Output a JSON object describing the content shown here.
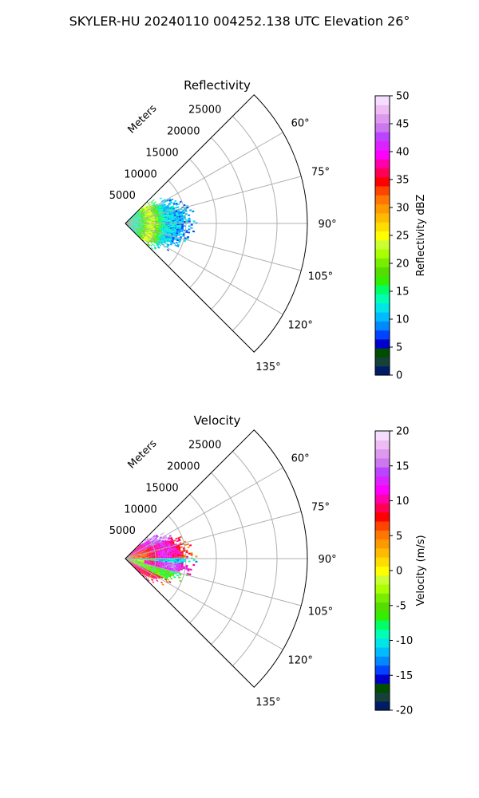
{
  "figure": {
    "title": "SKYLER-HU  20240110  004252.138 UTC Elevation 26°"
  },
  "chart_data": [
    {
      "type": "heatmap",
      "subtype": "polar-sector",
      "title": "Reflectivity",
      "range_label": "Meters",
      "range_ticks": [
        "5000",
        "10000",
        "15000",
        "20000",
        "25000"
      ],
      "range_values": [
        5000,
        10000,
        15000,
        20000,
        25000
      ],
      "rmax": 30000,
      "azimuth_range": [
        45,
        135
      ],
      "azimuth_ticks": [
        "60°",
        "75°",
        "90°",
        "105°",
        "120°",
        "135°"
      ],
      "azimuth_values": [
        60,
        75,
        90,
        105,
        120,
        135
      ],
      "grid": true,
      "colorbar": {
        "label": "Reflectivity dBZ",
        "range": [
          0,
          50
        ],
        "ticks": [
          "0",
          "5",
          "10",
          "15",
          "20",
          "25",
          "30",
          "35",
          "40",
          "45",
          "50"
        ],
        "tick_values": [
          0,
          5,
          10,
          15,
          20,
          25,
          30,
          35,
          40,
          45,
          50
        ],
        "colors": [
          "#001c66",
          "#15413a",
          "#004d00",
          "#0000cc",
          "#0044ff",
          "#0088ff",
          "#00bbff",
          "#00e5e5",
          "#00ffb3",
          "#00ff66",
          "#33ee00",
          "#55dd00",
          "#77ee00",
          "#aaff00",
          "#ccff33",
          "#ffff00",
          "#ffdd00",
          "#ffbb00",
          "#ff9900",
          "#ff7700",
          "#ff4400",
          "#ff0000",
          "#ff0055",
          "#ff00aa",
          "#ff00ff",
          "#dd22ff",
          "#bb44ff",
          "#cc77ee",
          "#dd99ee",
          "#eebbf5",
          "#f5ddff"
        ]
      },
      "echo_extent_m": 11000,
      "pattern": "reflectivity"
    },
    {
      "type": "heatmap",
      "subtype": "polar-sector",
      "title": "Velocity",
      "range_label": "Meters",
      "range_ticks": [
        "5000",
        "10000",
        "15000",
        "20000",
        "25000"
      ],
      "range_values": [
        5000,
        10000,
        15000,
        20000,
        25000
      ],
      "rmax": 30000,
      "azimuth_range": [
        45,
        135
      ],
      "azimuth_ticks": [
        "60°",
        "75°",
        "90°",
        "105°",
        "120°",
        "135°"
      ],
      "azimuth_values": [
        60,
        75,
        90,
        105,
        120,
        135
      ],
      "grid": true,
      "colorbar": {
        "label": "Velocity (m/s)",
        "range": [
          -20,
          20
        ],
        "ticks": [
          "-20",
          "-15",
          "-10",
          "-5",
          "0",
          "5",
          "10",
          "15",
          "20"
        ],
        "tick_values": [
          -20,
          -15,
          -10,
          -5,
          0,
          5,
          10,
          15,
          20
        ],
        "colors": [
          "#001c66",
          "#15413a",
          "#004d00",
          "#0000cc",
          "#0044ff",
          "#0088ff",
          "#00bbff",
          "#00e5e5",
          "#00ffb3",
          "#00ff66",
          "#33ee00",
          "#55dd00",
          "#77ee00",
          "#aaff00",
          "#ccff33",
          "#ffff00",
          "#ffdd00",
          "#ffbb00",
          "#ff9900",
          "#ff7700",
          "#ff4400",
          "#ff0000",
          "#ff0055",
          "#ff00aa",
          "#ff00ff",
          "#dd22ff",
          "#bb44ff",
          "#cc77ee",
          "#dd99ee",
          "#eebbf5",
          "#f5ddff"
        ]
      },
      "echo_extent_m": 11000,
      "pattern": "velocity"
    }
  ]
}
